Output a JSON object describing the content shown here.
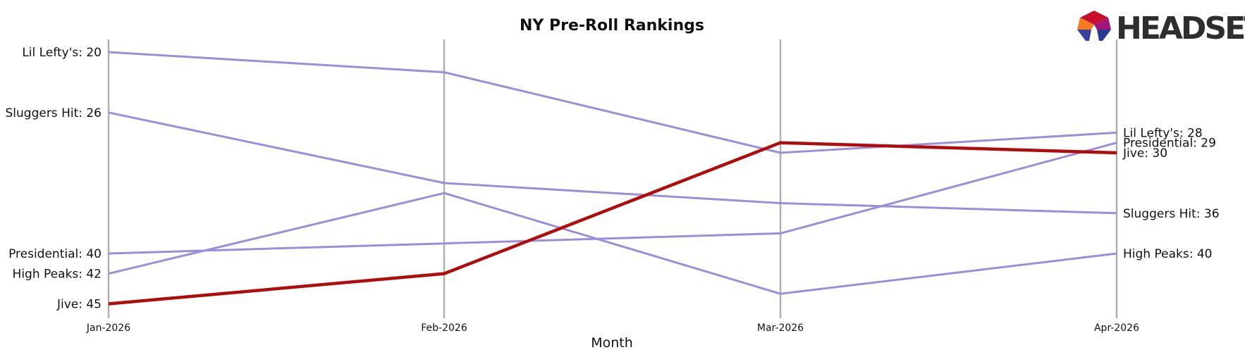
{
  "chart_data": {
    "type": "line",
    "title": "NY Pre-Roll Rankings",
    "xlabel": "Month",
    "ylabel": "",
    "categories": [
      "Jan-2026",
      "Feb-2026",
      "Mar-2026",
      "Apr-2026"
    ],
    "y_inverted": true,
    "ylim": [
      19,
      47
    ],
    "grid": "vertical lines at each month",
    "legend": "none (end labels)",
    "series": [
      {
        "name": "Lil Lefty's",
        "values": [
          20,
          22,
          30,
          28
        ],
        "color": "#9b8fdc",
        "highlight": false
      },
      {
        "name": "Sluggers Hit",
        "values": [
          26,
          33,
          35,
          36
        ],
        "color": "#9b8fdc",
        "highlight": false
      },
      {
        "name": "Presidential",
        "values": [
          40,
          39,
          38,
          29
        ],
        "color": "#9b8fdc",
        "highlight": false
      },
      {
        "name": "High Peaks",
        "values": [
          42,
          34,
          44,
          40
        ],
        "color": "#9b8fdc",
        "highlight": false
      },
      {
        "name": "Jive",
        "values": [
          45,
          42,
          29,
          30
        ],
        "color": "#b00c0c",
        "highlight": true
      }
    ],
    "start_labels": [
      {
        "text": "Lil Lefty's: 20",
        "value": 20,
        "series": "Lil Lefty's"
      },
      {
        "text": "Sluggers Hit: 26",
        "value": 26,
        "series": "Sluggers Hit"
      },
      {
        "text": "Presidential: 40",
        "value": 40,
        "series": "Presidential"
      },
      {
        "text": "High Peaks: 42",
        "value": 42,
        "series": "High Peaks"
      },
      {
        "text": "Jive: 45",
        "value": 45,
        "series": "Jive"
      }
    ],
    "end_labels": [
      {
        "text": "Lil Lefty's: 28",
        "value": 28,
        "series": "Lil Lefty's"
      },
      {
        "text": "Presidential: 29",
        "value": 29,
        "series": "Presidential"
      },
      {
        "text": "Jive: 30",
        "value": 30,
        "series": "Jive"
      },
      {
        "text": "Sluggers Hit: 36",
        "value": 36,
        "series": "Sluggers Hit"
      },
      {
        "text": "High Peaks: 40",
        "value": 40,
        "series": "High Peaks"
      }
    ]
  },
  "logo": {
    "text": "HEADSET",
    "icon": "headset-logo-icon"
  }
}
